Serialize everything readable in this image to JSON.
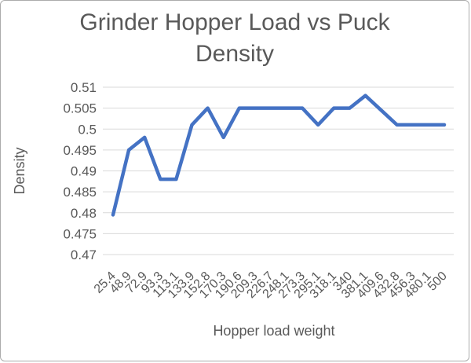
{
  "chart": {
    "title": "Grinder Hopper Load vs Puck Density",
    "x_axis_title": "Hopper load weight",
    "y_axis_title": "Density"
  },
  "chart_data": {
    "type": "line",
    "title": "Grinder Hopper Load vs Puck Density",
    "xlabel": "Hopper load weight",
    "ylabel": "Density",
    "categories": [
      "25.4",
      "48.9",
      "72.9",
      "93.3",
      "113.1",
      "133.9",
      "152.8",
      "170.3",
      "190.6",
      "209.3",
      "226.7",
      "248.1",
      "273.3",
      "295.1",
      "318.1",
      "340",
      "381.1",
      "409.6",
      "432.8",
      "456.3",
      "480.1",
      "500"
    ],
    "values": [
      0.4795,
      0.495,
      0.498,
      0.488,
      0.488,
      0.501,
      0.505,
      0.498,
      0.505,
      0.505,
      0.505,
      0.505,
      0.505,
      0.501,
      0.505,
      0.505,
      0.508,
      0.5045,
      0.501,
      0.501,
      0.501,
      0.501
    ],
    "ylim": [
      0.47,
      0.51
    ],
    "y_tick_step": 0.005,
    "grid": true,
    "legend": "none",
    "x_tick_rotation": 45,
    "line_color": "#4472C4",
    "gridline_color": "#D9D9D9",
    "text_color": "#595959"
  }
}
